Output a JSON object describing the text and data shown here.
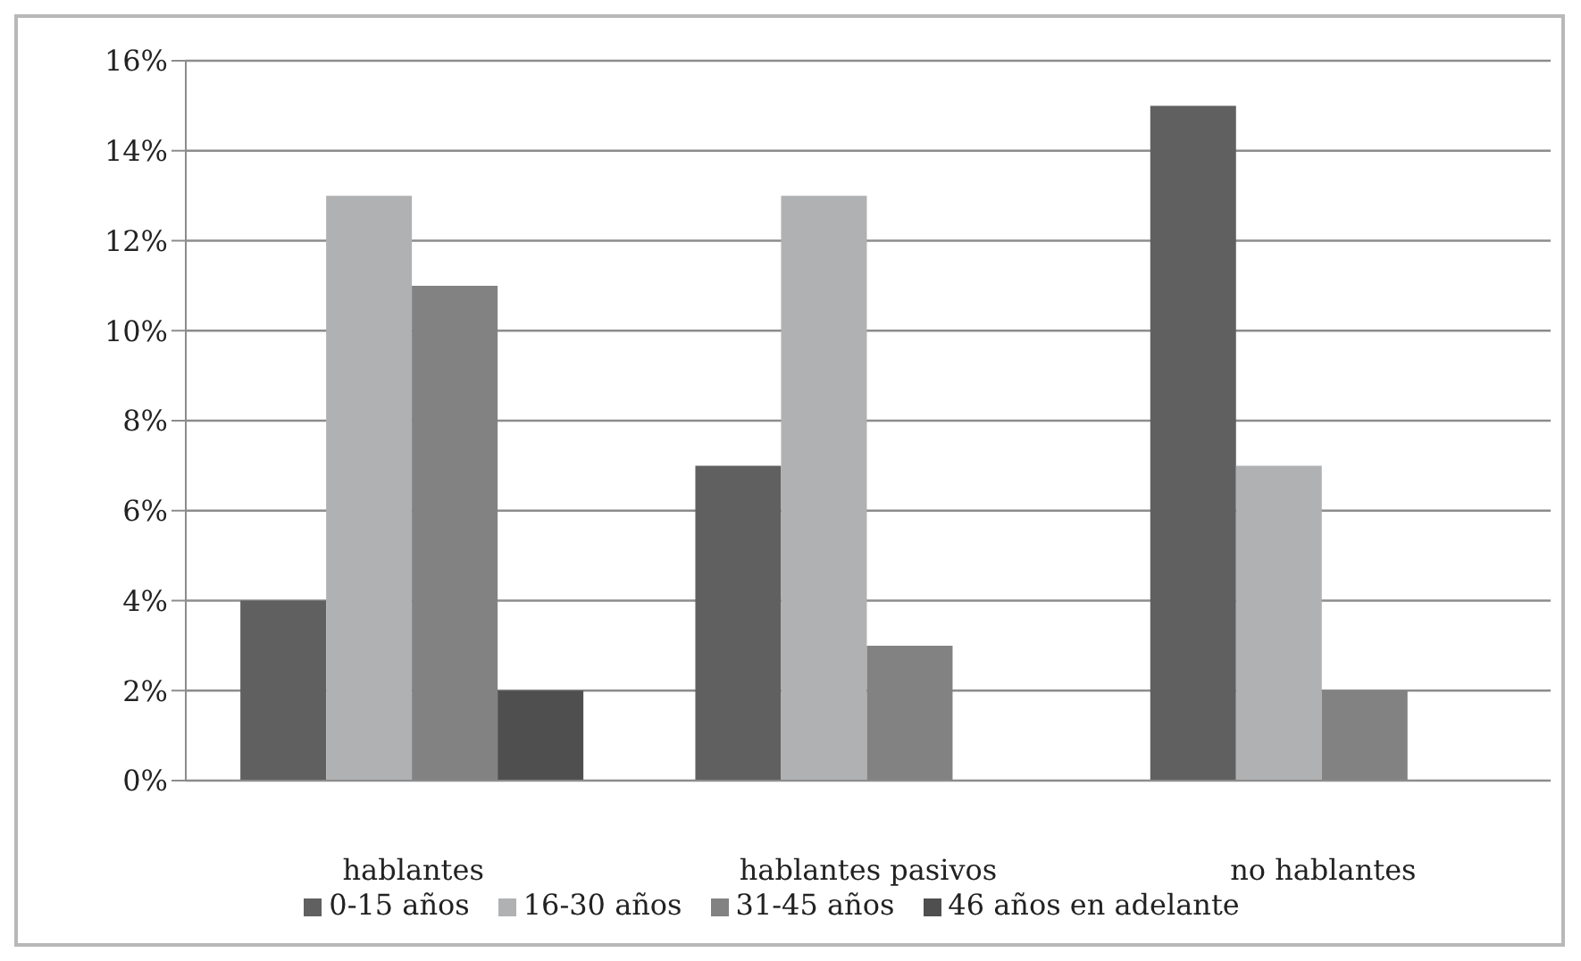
{
  "chart_data": {
    "type": "bar",
    "categories": [
      "hablantes",
      "hablantes pasivos",
      "no hablantes"
    ],
    "series": [
      {
        "name": "0-15 años",
        "color": "#606060",
        "values": [
          4,
          7,
          15
        ]
      },
      {
        "name": "16-30 años",
        "color": "#b0b1b2",
        "values": [
          13,
          13,
          7
        ]
      },
      {
        "name": "31-45 años",
        "color": "#838283",
        "values": [
          11,
          3,
          2
        ]
      },
      {
        "name": "46 años en adelante",
        "color": "#4f4f4f",
        "values": [
          2,
          0,
          0
        ]
      }
    ],
    "ylim": [
      0,
      16
    ],
    "yticks": [
      {
        "value": 0,
        "label": "0%"
      },
      {
        "value": 2,
        "label": "2%"
      },
      {
        "value": 4,
        "label": "4%"
      },
      {
        "value": 6,
        "label": "6%"
      },
      {
        "value": 8,
        "label": "8%"
      },
      {
        "value": 10,
        "label": "10%"
      },
      {
        "value": 12,
        "label": "12%"
      },
      {
        "value": 14,
        "label": "14%"
      },
      {
        "value": 16,
        "label": "16%"
      }
    ],
    "grid": "y",
    "legend": "bottom"
  }
}
